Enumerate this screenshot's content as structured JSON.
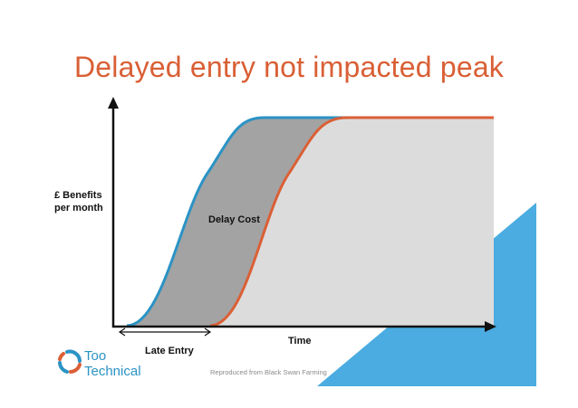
{
  "slide": {
    "title": "Delayed entry not impacted peak",
    "credit": "Reproduced from Black Swan Farming"
  },
  "diagram": {
    "y_axis_label_line1": "£ Benefits",
    "y_axis_label_line2": "per month",
    "x_axis_label": "Time",
    "late_entry_label": "Late Entry",
    "delay_cost_label": "Delay Cost"
  },
  "logo": {
    "line1": "Too",
    "line2": "Technical"
  },
  "colors": {
    "title": "#d95f35",
    "early_curve": "#2b93c5",
    "late_curve": "#db5f35",
    "delay_fill": "#a3a3a3",
    "benefit_fill": "#dcdcdc",
    "accent_triangle": "#4aace0"
  }
}
